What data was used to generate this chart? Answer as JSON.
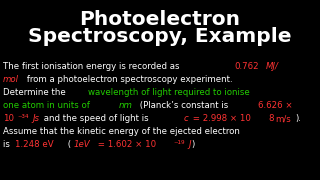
{
  "background_color": "#000000",
  "title_line1": "Photoelectron",
  "title_line2": "Spectroscopy, Example",
  "title_color": "#ffffff",
  "title_fontsize": 14.5,
  "title_bold": true,
  "body_fontsize": 6.2,
  "white": "#ffffff",
  "red": "#ff3333",
  "green": "#22cc00",
  "lines": [
    [
      {
        "t": "The first ionisation energy is recorded as ",
        "c": "white",
        "i": false
      },
      {
        "t": "0.762",
        "c": "red",
        "i": false
      },
      {
        "t": "MJ/",
        "c": "red",
        "i": true
      }
    ],
    [
      {
        "t": "mol",
        "c": "red",
        "i": true
      },
      {
        "t": " from a photoelectron spectroscopy experiment.",
        "c": "white",
        "i": false
      }
    ],
    [
      {
        "t": "Determine the ",
        "c": "white",
        "i": false
      },
      {
        "t": "wavelength of light required to ionise",
        "c": "green",
        "i": false
      }
    ],
    [
      {
        "t": "one atom in units of ",
        "c": "green",
        "i": false
      },
      {
        "t": "nm",
        "c": "green",
        "i": true
      },
      {
        "t": " (Planck’s constant is ",
        "c": "white",
        "i": false
      },
      {
        "t": "6.626 ×",
        "c": "red",
        "i": false
      }
    ],
    [
      {
        "t": "10",
        "c": "red",
        "i": false
      },
      {
        "t": "⁻³⁴",
        "c": "red",
        "i": false
      },
      {
        "t": "Js",
        "c": "red",
        "i": true
      },
      {
        "t": " and the speed of light is ",
        "c": "white",
        "i": false
      },
      {
        "t": "c",
        "c": "red",
        "i": true
      },
      {
        "t": " = 2.998 × 10",
        "c": "red",
        "i": false
      },
      {
        "t": "8",
        "c": "red",
        "i": false
      },
      {
        "t": "m/s",
        "c": "red",
        "i": false
      },
      {
        "t": ").",
        "c": "white",
        "i": false
      }
    ],
    [
      {
        "t": "Assume that the kinetic energy of the ejected electron",
        "c": "white",
        "i": false
      }
    ],
    [
      {
        "t": "is ",
        "c": "white",
        "i": false
      },
      {
        "t": "1.248 eV",
        "c": "red",
        "i": false
      },
      {
        "t": " (",
        "c": "white",
        "i": false
      },
      {
        "t": "1eV",
        "c": "red",
        "i": true
      },
      {
        "t": " = 1.602 × 10",
        "c": "red",
        "i": false
      },
      {
        "t": "⁻¹⁹",
        "c": "red",
        "i": false
      },
      {
        "t": "J",
        "c": "red",
        "i": true
      },
      {
        "t": ")",
        "c": "white",
        "i": false
      }
    ]
  ],
  "color_map": {
    "white": "#ffffff",
    "red": "#ff3333",
    "green": "#22cc00"
  }
}
